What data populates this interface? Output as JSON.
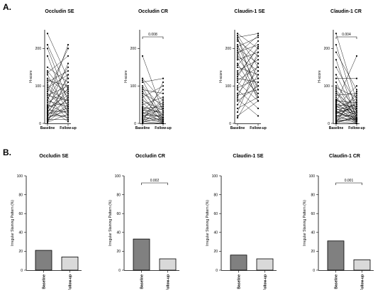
{
  "panel_labels": [
    "A.",
    "B."
  ],
  "chart_data": [
    {
      "type": "line",
      "panel": "A",
      "title": "Occludin SE",
      "ylabel": "H-score",
      "ylim": [
        0,
        250
      ],
      "yticks": [
        0,
        100,
        200
      ],
      "categories": [
        "Baseline",
        "Follow-up"
      ],
      "pvalue": "",
      "series": [
        {
          "values": [
            240,
            120
          ]
        },
        {
          "values": [
            210,
            90
          ]
        },
        {
          "values": [
            200,
            60
          ]
        },
        {
          "values": [
            180,
            40
          ]
        },
        {
          "values": [
            150,
            110
          ]
        },
        {
          "values": [
            140,
            70
          ]
        },
        {
          "values": [
            135,
            180
          ]
        },
        {
          "values": [
            130,
            30
          ]
        },
        {
          "values": [
            120,
            80
          ]
        },
        {
          "values": [
            110,
            140
          ]
        },
        {
          "values": [
            105,
            50
          ]
        },
        {
          "values": [
            100,
            20
          ]
        },
        {
          "values": [
            95,
            130
          ]
        },
        {
          "values": [
            90,
            60
          ]
        },
        {
          "values": [
            85,
            200
          ]
        },
        {
          "values": [
            80,
            35
          ]
        },
        {
          "values": [
            75,
            100
          ]
        },
        {
          "values": [
            70,
            10
          ]
        },
        {
          "values": [
            65,
            150
          ]
        },
        {
          "values": [
            60,
            45
          ]
        },
        {
          "values": [
            55,
            90
          ]
        },
        {
          "values": [
            50,
            25
          ]
        },
        {
          "values": [
            48,
            120
          ]
        },
        {
          "values": [
            45,
            55
          ]
        },
        {
          "values": [
            42,
            5
          ]
        },
        {
          "values": [
            40,
            75
          ]
        },
        {
          "values": [
            38,
            160
          ]
        },
        {
          "values": [
            35,
            30
          ]
        },
        {
          "values": [
            32,
            85
          ]
        },
        {
          "values": [
            30,
            15
          ]
        },
        {
          "values": [
            28,
            110
          ]
        },
        {
          "values": [
            25,
            40
          ]
        },
        {
          "values": [
            22,
            65
          ]
        },
        {
          "values": [
            20,
            20
          ]
        },
        {
          "values": [
            18,
            95
          ]
        },
        {
          "values": [
            15,
            35
          ]
        },
        {
          "values": [
            12,
            50
          ]
        },
        {
          "values": [
            10,
            10
          ]
        },
        {
          "values": [
            8,
            70
          ]
        },
        {
          "values": [
            5,
            45
          ]
        },
        {
          "values": [
            3,
            25
          ]
        },
        {
          "values": [
            2,
            130
          ]
        },
        {
          "values": [
            60,
            210
          ]
        },
        {
          "values": [
            115,
            100
          ]
        },
        {
          "values": [
            75,
            60
          ]
        }
      ]
    },
    {
      "type": "line",
      "panel": "A",
      "title": "Occludin CR",
      "ylabel": "H-score",
      "ylim": [
        0,
        250
      ],
      "yticks": [
        0,
        100,
        200
      ],
      "categories": [
        "Baseline",
        "Follow-up"
      ],
      "pvalue": "0.008",
      "series": [
        {
          "values": [
            180,
            30
          ]
        },
        {
          "values": [
            120,
            60
          ]
        },
        {
          "values": [
            115,
            10
          ]
        },
        {
          "values": [
            110,
            120
          ]
        },
        {
          "values": [
            100,
            40
          ]
        },
        {
          "values": [
            95,
            5
          ]
        },
        {
          "values": [
            90,
            80
          ]
        },
        {
          "values": [
            85,
            20
          ]
        },
        {
          "values": [
            80,
            50
          ]
        },
        {
          "values": [
            75,
            0
          ]
        },
        {
          "values": [
            70,
            100
          ]
        },
        {
          "values": [
            65,
            15
          ]
        },
        {
          "values": [
            60,
            35
          ]
        },
        {
          "values": [
            55,
            5
          ]
        },
        {
          "values": [
            50,
            70
          ]
        },
        {
          "values": [
            45,
            25
          ]
        },
        {
          "values": [
            42,
            10
          ]
        },
        {
          "values": [
            40,
            45
          ]
        },
        {
          "values": [
            38,
            0
          ]
        },
        {
          "values": [
            35,
            30
          ]
        },
        {
          "values": [
            32,
            90
          ]
        },
        {
          "values": [
            30,
            15
          ]
        },
        {
          "values": [
            28,
            5
          ]
        },
        {
          "values": [
            25,
            55
          ]
        },
        {
          "values": [
            22,
            20
          ]
        },
        {
          "values": [
            20,
            0
          ]
        },
        {
          "values": [
            18,
            40
          ]
        },
        {
          "values": [
            15,
            10
          ]
        },
        {
          "values": [
            12,
            65
          ]
        },
        {
          "values": [
            10,
            5
          ]
        },
        {
          "values": [
            8,
            25
          ]
        },
        {
          "values": [
            5,
            0
          ]
        },
        {
          "values": [
            3,
            15
          ]
        },
        {
          "values": [
            2,
            110
          ]
        },
        {
          "values": [
            0,
            50
          ]
        },
        {
          "values": [
            0,
            0
          ]
        }
      ]
    },
    {
      "type": "line",
      "panel": "A",
      "title": "Claudin-1 SE",
      "ylabel": "H-score",
      "ylim": [
        0,
        250
      ],
      "yticks": [
        0,
        100,
        200
      ],
      "categories": [
        "Baseline",
        "Follow-up"
      ],
      "pvalue": "",
      "series": [
        {
          "values": [
            240,
            200
          ]
        },
        {
          "values": [
            235,
            150
          ]
        },
        {
          "values": [
            230,
            240
          ]
        },
        {
          "values": [
            225,
            120
          ]
        },
        {
          "values": [
            220,
            180
          ]
        },
        {
          "values": [
            210,
            90
          ]
        },
        {
          "values": [
            205,
            230
          ]
        },
        {
          "values": [
            200,
            160
          ]
        },
        {
          "values": [
            195,
            60
          ]
        },
        {
          "values": [
            190,
            210
          ]
        },
        {
          "values": [
            180,
            140
          ]
        },
        {
          "values": [
            175,
            100
          ]
        },
        {
          "values": [
            170,
            190
          ]
        },
        {
          "values": [
            160,
            70
          ]
        },
        {
          "values": [
            155,
            220
          ]
        },
        {
          "values": [
            150,
            130
          ]
        },
        {
          "values": [
            140,
            170
          ]
        },
        {
          "values": [
            135,
            80
          ]
        },
        {
          "values": [
            130,
            200
          ]
        },
        {
          "values": [
            120,
            110
          ]
        },
        {
          "values": [
            115,
            150
          ]
        },
        {
          "values": [
            110,
            60
          ]
        },
        {
          "values": [
            100,
            180
          ]
        },
        {
          "values": [
            95,
            120
          ]
        },
        {
          "values": [
            90,
            40
          ]
        },
        {
          "values": [
            80,
            140
          ]
        },
        {
          "values": [
            75,
            90
          ]
        },
        {
          "values": [
            70,
            190
          ]
        },
        {
          "values": [
            65,
            20
          ]
        },
        {
          "values": [
            60,
            100
          ]
        },
        {
          "values": [
            50,
            130
          ]
        },
        {
          "values": [
            40,
            70
          ]
        },
        {
          "values": [
            30,
            160
          ]
        },
        {
          "values": [
            20,
            60
          ]
        },
        {
          "values": [
            15,
            110
          ]
        },
        {
          "values": [
            230,
            70
          ]
        },
        {
          "values": [
            185,
            235
          ]
        },
        {
          "values": [
            125,
            205
          ]
        }
      ]
    },
    {
      "type": "line",
      "panel": "A",
      "title": "Claudin-1 CR",
      "ylabel": "H-score",
      "ylim": [
        0,
        250
      ],
      "yticks": [
        0,
        100,
        200
      ],
      "categories": [
        "Baseline",
        "Follow-up"
      ],
      "pvalue": "0.004",
      "series": [
        {
          "values": [
            240,
            60
          ]
        },
        {
          "values": [
            210,
            30
          ]
        },
        {
          "values": [
            190,
            90
          ]
        },
        {
          "values": [
            170,
            10
          ]
        },
        {
          "values": [
            150,
            50
          ]
        },
        {
          "values": [
            130,
            20
          ]
        },
        {
          "values": [
            120,
            120
          ]
        },
        {
          "values": [
            110,
            5
          ]
        },
        {
          "values": [
            100,
            40
          ]
        },
        {
          "values": [
            95,
            70
          ]
        },
        {
          "values": [
            90,
            15
          ]
        },
        {
          "values": [
            85,
            0
          ]
        },
        {
          "values": [
            80,
            35
          ]
        },
        {
          "values": [
            75,
            80
          ]
        },
        {
          "values": [
            70,
            10
          ]
        },
        {
          "values": [
            65,
            25
          ]
        },
        {
          "values": [
            60,
            55
          ]
        },
        {
          "values": [
            58,
            5
          ]
        },
        {
          "values": [
            55,
            180
          ]
        },
        {
          "values": [
            52,
            20
          ]
        },
        {
          "values": [
            50,
            45
          ]
        },
        {
          "values": [
            48,
            0
          ]
        },
        {
          "values": [
            45,
            30
          ]
        },
        {
          "values": [
            42,
            65
          ]
        },
        {
          "values": [
            40,
            10
          ]
        },
        {
          "values": [
            38,
            25
          ]
        },
        {
          "values": [
            35,
            50
          ]
        },
        {
          "values": [
            32,
            5
          ]
        },
        {
          "values": [
            30,
            40
          ]
        },
        {
          "values": [
            28,
            15
          ]
        },
        {
          "values": [
            25,
            75
          ]
        },
        {
          "values": [
            22,
            0
          ]
        },
        {
          "values": [
            20,
            20
          ]
        },
        {
          "values": [
            18,
            35
          ]
        },
        {
          "values": [
            15,
            10
          ]
        },
        {
          "values": [
            12,
            60
          ]
        },
        {
          "values": [
            10,
            5
          ]
        },
        {
          "values": [
            8,
            30
          ]
        },
        {
          "values": [
            5,
            0
          ]
        },
        {
          "values": [
            3,
            15
          ]
        },
        {
          "values": [
            2,
            85
          ]
        },
        {
          "values": [
            0,
            20
          ]
        },
        {
          "values": [
            44,
            100
          ]
        },
        {
          "values": [
            33,
            8
          ]
        },
        {
          "values": [
            27,
            45
          ]
        },
        {
          "values": [
            17,
            55
          ]
        },
        {
          "values": [
            7,
            12
          ]
        },
        {
          "values": [
            62,
            35
          ]
        }
      ]
    },
    {
      "type": "bar",
      "panel": "B",
      "title": "Occludin SE",
      "ylabel": "Irregular Staining Pattern (%)",
      "ylim": [
        0,
        100
      ],
      "yticks": [
        0,
        20,
        40,
        60,
        80,
        100
      ],
      "categories": [
        "Baseline",
        "Follow-up"
      ],
      "values": [
        21,
        14
      ],
      "colors": [
        "#808080",
        "#d9d9d9"
      ],
      "pvalue": ""
    },
    {
      "type": "bar",
      "panel": "B",
      "title": "Occludin CR",
      "ylabel": "Irregular Staining Pattern (%)",
      "ylim": [
        0,
        100
      ],
      "yticks": [
        0,
        20,
        40,
        60,
        80,
        100
      ],
      "categories": [
        "Baseline",
        "Follow-up"
      ],
      "values": [
        33,
        12
      ],
      "colors": [
        "#808080",
        "#d9d9d9"
      ],
      "pvalue": "0.002"
    },
    {
      "type": "bar",
      "panel": "B",
      "title": "Claudin-1 SE",
      "ylabel": "Irregular Staining Pattern (%)",
      "ylim": [
        0,
        100
      ],
      "yticks": [
        0,
        20,
        40,
        60,
        80,
        100
      ],
      "categories": [
        "Baseline",
        "Follow-up"
      ],
      "values": [
        16,
        12
      ],
      "colors": [
        "#808080",
        "#d9d9d9"
      ],
      "pvalue": ""
    },
    {
      "type": "bar",
      "panel": "B",
      "title": "Claudin-1 CR",
      "ylabel": "Irregular Staining Pattern (%)",
      "ylim": [
        0,
        100
      ],
      "yticks": [
        0,
        20,
        40,
        60,
        80,
        100
      ],
      "categories": [
        "Baseline",
        "Follow-up"
      ],
      "values": [
        31,
        11
      ],
      "colors": [
        "#808080",
        "#d9d9d9"
      ],
      "pvalue": "0.001"
    }
  ]
}
